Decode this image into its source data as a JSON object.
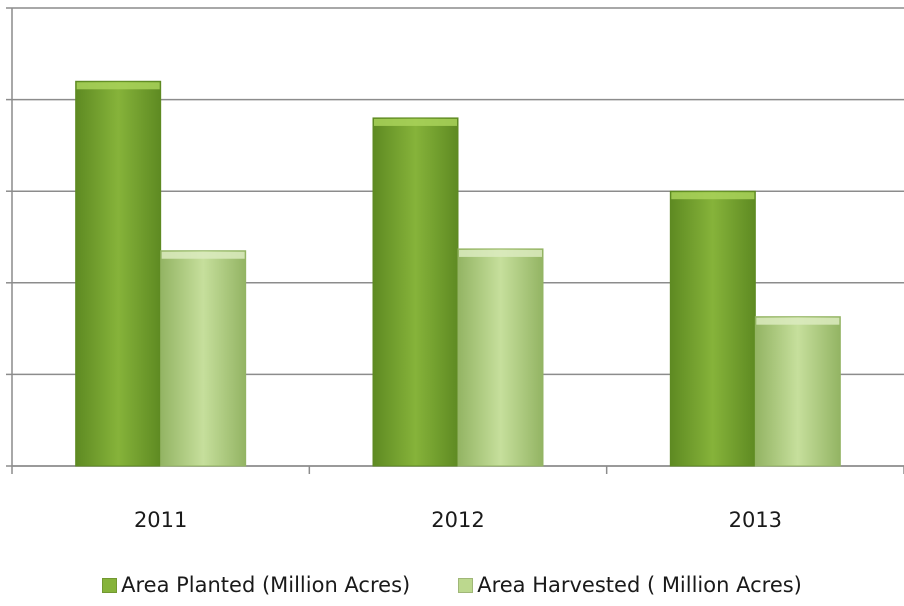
{
  "chart_data": {
    "type": "bar",
    "categories": [
      "2011",
      "2012",
      "2013"
    ],
    "series": [
      {
        "name": "Area Planted (Million Acres)",
        "values": [
          4.2,
          3.8,
          3.0
        ],
        "color": "#86b33a",
        "color_light": "#a9d25a",
        "color_dark": "#5e8a22"
      },
      {
        "name": "Area Harvested ( Million Acres)",
        "values": [
          2.35,
          2.37,
          1.63
        ],
        "color": "#bcd88e",
        "color_light": "#dcebbf",
        "color_dark": "#93b463"
      }
    ],
    "ylim": [
      0,
      5
    ],
    "grid": true,
    "legend_position": "bottom"
  }
}
